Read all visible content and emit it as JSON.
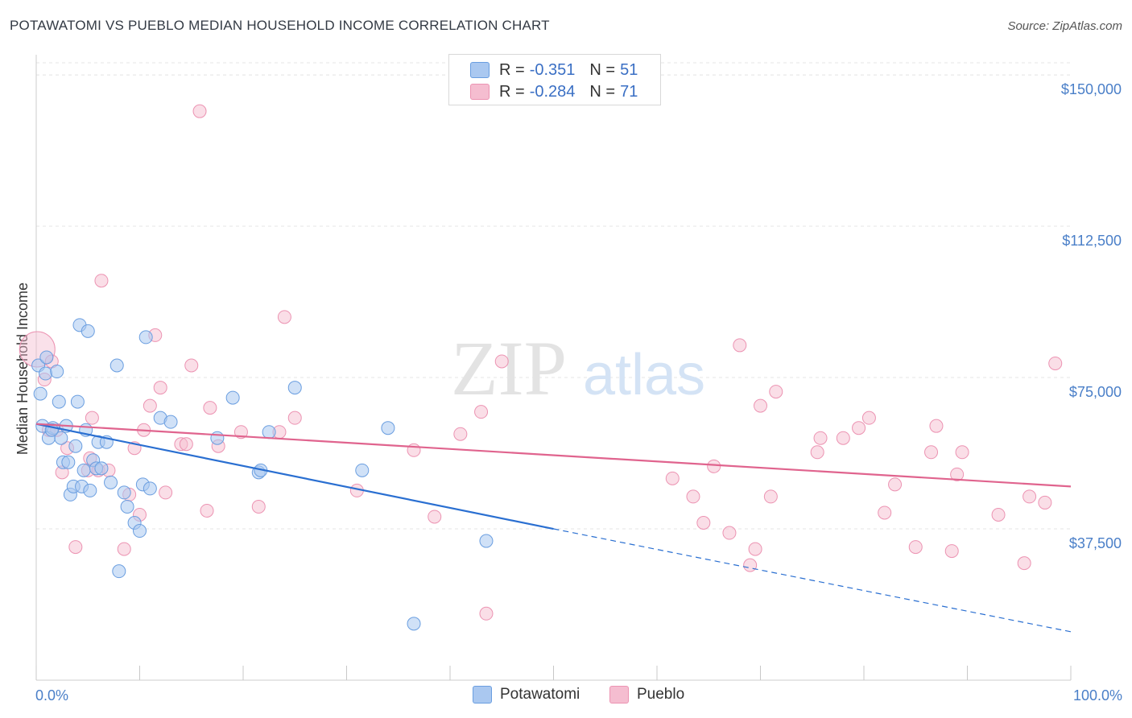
{
  "header": {
    "title": "POTAWATOMI VS PUEBLO MEDIAN HOUSEHOLD INCOME CORRELATION CHART",
    "source": "Source: ZipAtlas.com"
  },
  "legend": {
    "potawatomi": {
      "r_label": "R =",
      "r_value": "-0.351",
      "n_label": "N =",
      "n_value": "51"
    },
    "pueblo": {
      "r_label": "R =",
      "r_value": "-0.284",
      "n_label": "N =",
      "n_value": "71"
    }
  },
  "bottom_legend": {
    "potawatomi": "Potawatomi",
    "pueblo": "Pueblo"
  },
  "watermark": {
    "zip": "ZIP",
    "atlas": "atlas"
  },
  "colors": {
    "potawatomi_fill": "#aac8f0",
    "potawatomi_stroke": "#6a9ee0",
    "potawatomi_line": "#2a6fd1",
    "pueblo_fill": "#f5bdd0",
    "pueblo_stroke": "#ec93b2",
    "pueblo_line": "#e0648e"
  },
  "chart_data": {
    "type": "scatter",
    "title": "POTAWATOMI VS PUEBLO MEDIAN HOUSEHOLD INCOME CORRELATION CHART",
    "xlabel": "",
    "ylabel": "Median Household Income",
    "xlim": [
      0,
      100
    ],
    "ylim": [
      0,
      155000
    ],
    "x_tick_labels": [
      "0.0%",
      "100.0%"
    ],
    "y_ticks": [
      37500,
      75000,
      112500,
      150000
    ],
    "y_tick_labels": [
      "$37,500",
      "$75,000",
      "$112,500",
      "$150,000"
    ],
    "grid": true,
    "series": [
      {
        "name": "Potawatomi",
        "points": [
          [
            0.2,
            78000
          ],
          [
            0.4,
            71000
          ],
          [
            0.6,
            63000
          ],
          [
            0.9,
            76000
          ],
          [
            1.2,
            60000
          ],
          [
            1.6,
            62500
          ],
          [
            2.0,
            76500
          ],
          [
            2.2,
            69000
          ],
          [
            2.4,
            60000
          ],
          [
            2.6,
            54000
          ],
          [
            2.9,
            63000
          ],
          [
            3.1,
            54000
          ],
          [
            3.3,
            46000
          ],
          [
            3.6,
            48000
          ],
          [
            3.8,
            58000
          ],
          [
            4.0,
            69000
          ],
          [
            4.2,
            88000
          ],
          [
            4.4,
            48000
          ],
          [
            4.6,
            52000
          ],
          [
            4.8,
            62000
          ],
          [
            5.0,
            86500
          ],
          [
            5.2,
            47000
          ],
          [
            5.5,
            54500
          ],
          [
            5.8,
            52500
          ],
          [
            6.0,
            59000
          ],
          [
            6.3,
            52500
          ],
          [
            6.8,
            59000
          ],
          [
            7.2,
            49000
          ],
          [
            7.8,
            78000
          ],
          [
            8.0,
            27000
          ],
          [
            8.5,
            46500
          ],
          [
            8.8,
            43000
          ],
          [
            9.5,
            39000
          ],
          [
            10.0,
            37000
          ],
          [
            10.3,
            48500
          ],
          [
            10.6,
            85000
          ],
          [
            11.0,
            47500
          ],
          [
            12.0,
            65000
          ],
          [
            13.0,
            64000
          ],
          [
            17.5,
            60000
          ],
          [
            19.0,
            70000
          ],
          [
            21.5,
            51500
          ],
          [
            21.7,
            52000
          ],
          [
            22.5,
            61500
          ],
          [
            25.0,
            72500
          ],
          [
            31.5,
            52000
          ],
          [
            34.0,
            62500
          ],
          [
            36.5,
            14000
          ],
          [
            43.5,
            34500
          ],
          [
            1.0,
            80000
          ],
          [
            1.5,
            62000
          ]
        ]
      },
      {
        "name": "Pueblo",
        "points": [
          [
            0.1,
            82000
          ],
          [
            0.8,
            74500
          ],
          [
            1.2,
            62000
          ],
          [
            1.5,
            79000
          ],
          [
            2.0,
            62000
          ],
          [
            2.5,
            51500
          ],
          [
            3.0,
            57500
          ],
          [
            3.8,
            33000
          ],
          [
            5.0,
            52000
          ],
          [
            5.2,
            55000
          ],
          [
            5.4,
            65000
          ],
          [
            6.0,
            52000
          ],
          [
            6.3,
            99000
          ],
          [
            7.0,
            52000
          ],
          [
            8.5,
            32500
          ],
          [
            9.0,
            46000
          ],
          [
            9.5,
            57500
          ],
          [
            10.0,
            41000
          ],
          [
            10.4,
            62000
          ],
          [
            11.0,
            68000
          ],
          [
            11.5,
            85500
          ],
          [
            12.0,
            72500
          ],
          [
            12.5,
            46500
          ],
          [
            14.0,
            58500
          ],
          [
            14.5,
            58500
          ],
          [
            15.0,
            78000
          ],
          [
            15.8,
            141000
          ],
          [
            16.5,
            42000
          ],
          [
            16.8,
            67500
          ],
          [
            17.6,
            58000
          ],
          [
            19.8,
            61500
          ],
          [
            21.5,
            43000
          ],
          [
            23.5,
            61500
          ],
          [
            24.0,
            90000
          ],
          [
            25.0,
            65000
          ],
          [
            31.0,
            47000
          ],
          [
            36.5,
            57000
          ],
          [
            38.5,
            40500
          ],
          [
            41.0,
            61000
          ],
          [
            43.0,
            66500
          ],
          [
            43.5,
            16500
          ],
          [
            45.0,
            79000
          ],
          [
            61.5,
            50000
          ],
          [
            63.5,
            45500
          ],
          [
            64.5,
            39000
          ],
          [
            65.5,
            53000
          ],
          [
            67.0,
            36500
          ],
          [
            68.0,
            83000
          ],
          [
            69.0,
            28500
          ],
          [
            69.5,
            32500
          ],
          [
            70.0,
            68000
          ],
          [
            71.0,
            45500
          ],
          [
            71.5,
            71500
          ],
          [
            75.5,
            56500
          ],
          [
            75.8,
            60000
          ],
          [
            78.0,
            60000
          ],
          [
            79.5,
            62500
          ],
          [
            80.5,
            65000
          ],
          [
            82.0,
            41500
          ],
          [
            83.0,
            48500
          ],
          [
            85.0,
            33000
          ],
          [
            86.5,
            56500
          ],
          [
            87.0,
            63000
          ],
          [
            88.5,
            32000
          ],
          [
            89.0,
            51000
          ],
          [
            89.5,
            56500
          ],
          [
            93.0,
            41000
          ],
          [
            95.5,
            29000
          ],
          [
            96.0,
            45500
          ],
          [
            97.5,
            44000
          ],
          [
            98.5,
            78500
          ]
        ]
      }
    ],
    "trendlines": [
      {
        "series": "Potawatomi",
        "x": [
          0,
          50
        ],
        "y": [
          63500,
          37500
        ],
        "dashed_extension_to": [
          100,
          12000
        ]
      },
      {
        "series": "Pueblo",
        "x": [
          0,
          100
        ],
        "y": [
          63500,
          48000
        ]
      }
    ]
  }
}
